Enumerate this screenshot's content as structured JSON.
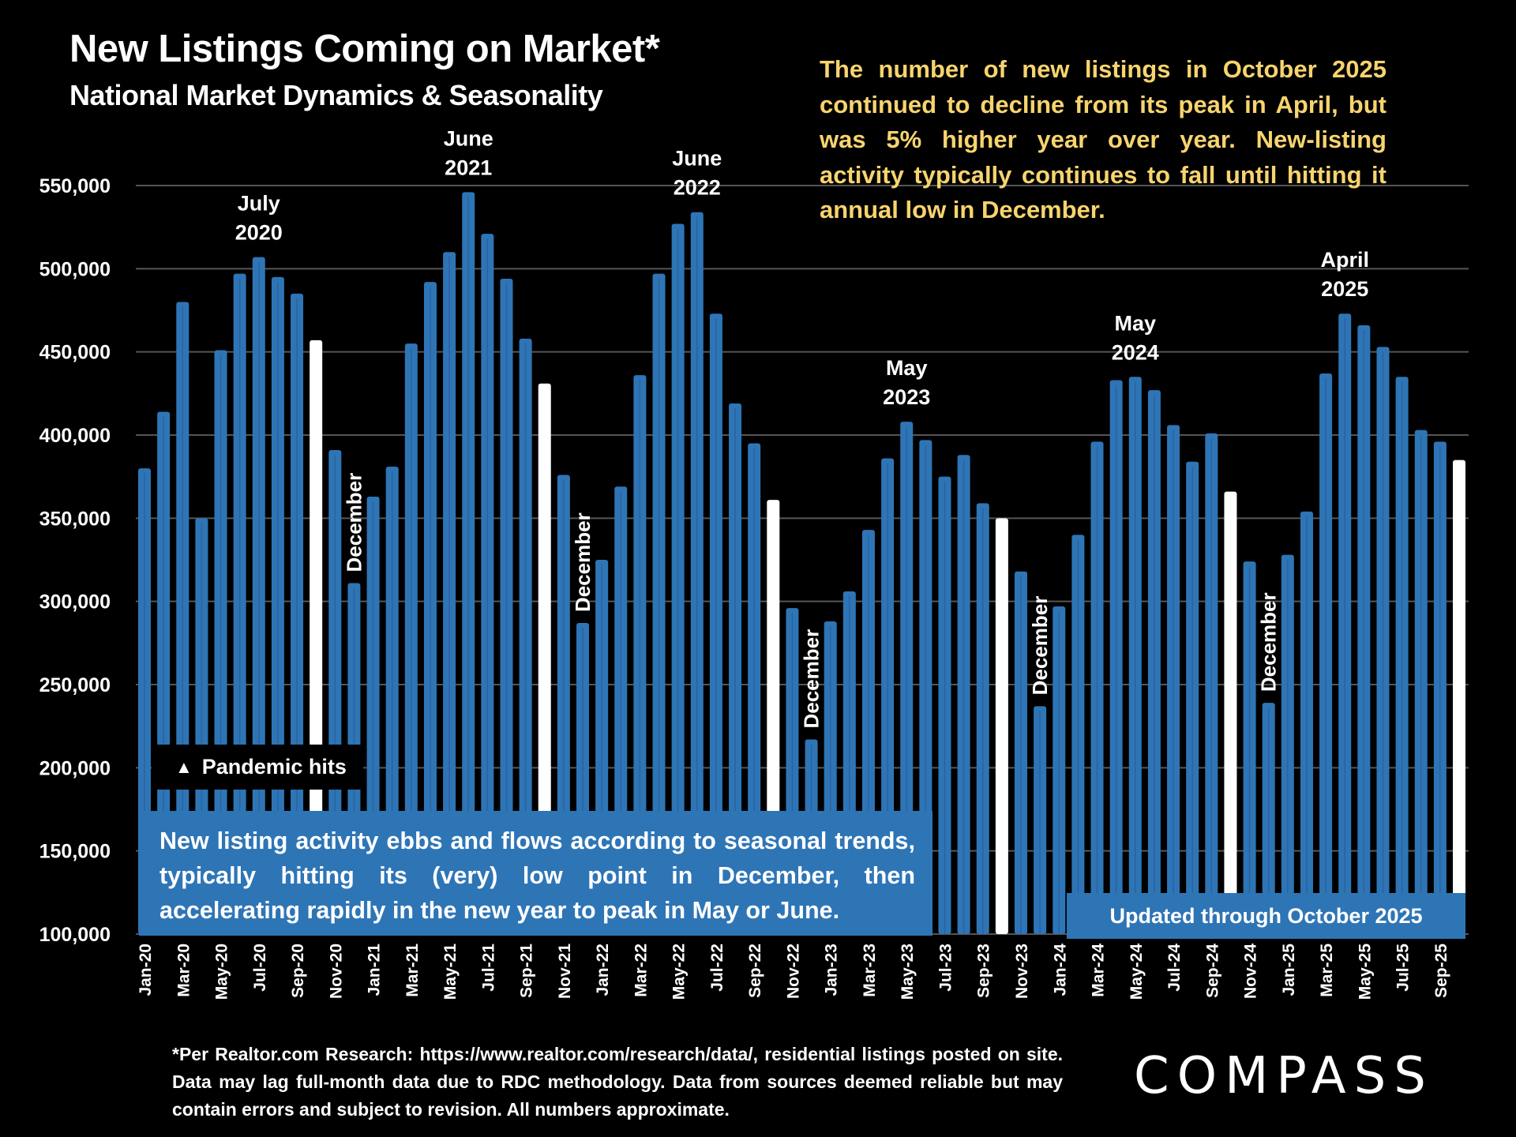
{
  "header": {
    "title": "New Listings Coming on Market*",
    "subtitle": "National Market Dynamics & Seasonality"
  },
  "commentary": "The number of new listings in October 2025 continued to decline from its peak in April, but was 5% higher year over year. New-listing activity typically continues to fall until hitting it annual low in December.",
  "annotations": {
    "pandemic": "Pandemic hits",
    "pandemic_icon": "up-triangle",
    "seasonal_note": "New listing activity ebbs and flows according to seasonal trends, typically hitting its (very) low point in December, then accelerating rapidly in the new year to peak in May or June.",
    "updated": "Updated through October 2025"
  },
  "footnote": "*Per Realtor.com Research:  https://www.realtor.com/research/data/, residential listings posted on site. Data may lag full-month data due to RDC methodology. Data from sources deemed reliable but may contain errors and subject to revision. All numbers approximate.",
  "logo": "COMPASS",
  "colors": {
    "bar": "#2E75B6",
    "bar_highlight": "#FFFFFF",
    "commentary": "#F7D46E",
    "grid": "#555555",
    "background": "#000000"
  },
  "chart_data": {
    "type": "bar",
    "title": "New Listings Coming on Market*",
    "subtitle": "National Market Dynamics & Seasonality",
    "xlabel": "",
    "ylabel": "",
    "ylim": [
      100000,
      550000
    ],
    "yticks": [
      100000,
      150000,
      200000,
      250000,
      300000,
      350000,
      400000,
      450000,
      500000,
      550000
    ],
    "ytick_labels": [
      "100,000",
      "150,000",
      "200,000",
      "250,000",
      "300,000",
      "350,000",
      "400,000",
      "450,000",
      "500,000",
      "550,000"
    ],
    "grid": true,
    "categories": [
      "Jan-20",
      "Feb-20",
      "Mar-20",
      "Apr-20",
      "May-20",
      "Jun-20",
      "Jul-20",
      "Aug-20",
      "Sep-20",
      "Oct-20",
      "Nov-20",
      "Dec-20",
      "Jan-21",
      "Feb-21",
      "Mar-21",
      "Apr-21",
      "May-21",
      "Jun-21",
      "Jul-21",
      "Aug-21",
      "Sep-21",
      "Oct-21",
      "Nov-21",
      "Dec-21",
      "Jan-22",
      "Feb-22",
      "Mar-22",
      "Apr-22",
      "May-22",
      "Jun-22",
      "Jul-22",
      "Aug-22",
      "Sep-22",
      "Oct-22",
      "Nov-22",
      "Dec-22",
      "Jan-23",
      "Feb-23",
      "Mar-23",
      "Apr-23",
      "May-23",
      "Jun-23",
      "Jul-23",
      "Aug-23",
      "Sep-23",
      "Oct-23",
      "Nov-23",
      "Dec-23",
      "Jan-24",
      "Feb-24",
      "Mar-24",
      "Apr-24",
      "May-24",
      "Jun-24",
      "Jul-24",
      "Aug-24",
      "Sep-24",
      "Oct-24",
      "Nov-24",
      "Dec-24",
      "Jan-25",
      "Feb-25",
      "Mar-25",
      "Apr-25",
      "May-25",
      "Jun-25",
      "Jul-25",
      "Aug-25",
      "Sep-25",
      "Oct-25"
    ],
    "values": [
      380000,
      414000,
      480000,
      350000,
      451000,
      497000,
      507000,
      495000,
      485000,
      457000,
      391000,
      311000,
      363000,
      381000,
      455000,
      492000,
      510000,
      546000,
      521000,
      494000,
      458000,
      431000,
      376000,
      287000,
      325000,
      369000,
      436000,
      497000,
      527000,
      534000,
      473000,
      419000,
      395000,
      361000,
      296000,
      217000,
      288000,
      306000,
      343000,
      386000,
      408000,
      397000,
      375000,
      388000,
      359000,
      350000,
      318000,
      237000,
      297000,
      340000,
      396000,
      433000,
      435000,
      427000,
      406000,
      384000,
      401000,
      366000,
      324000,
      239000,
      328000,
      354000,
      437000,
      473000,
      466000,
      453000,
      435000,
      403000,
      396000,
      385000
    ],
    "highlighted": [
      "Oct-20",
      "Oct-21",
      "Oct-22",
      "Oct-23",
      "Oct-24",
      "Oct-25"
    ],
    "xtick_labels_shown": [
      "Jan-20",
      "Mar-20",
      "May-20",
      "Jul-20",
      "Sep-20",
      "Nov-20",
      "Jan-21",
      "Mar-21",
      "May-21",
      "Jul-21",
      "Sep-21",
      "Nov-21",
      "Jan-22",
      "Mar-22",
      "May-22",
      "Jul-22",
      "Sep-22",
      "Nov-22",
      "Jan-23",
      "Mar-23",
      "May-23",
      "Jul-23",
      "Sep-23",
      "Nov-23",
      "Jan-24",
      "Mar-24",
      "May-24",
      "Jul-24",
      "Sep-24",
      "Nov-24",
      "Jan-25",
      "Mar-25",
      "May-25",
      "Jul-25",
      "Sep-25"
    ],
    "peak_labels": [
      {
        "category": "Jul-20",
        "line1": "July",
        "line2": "2020"
      },
      {
        "category": "Jun-21",
        "line1": "June",
        "line2": "2021"
      },
      {
        "category": "Jun-22",
        "line1": "June",
        "line2": "2022"
      },
      {
        "category": "May-23",
        "line1": "May",
        "line2": "2023"
      },
      {
        "category": "May-24",
        "line1": "May",
        "line2": "2024"
      },
      {
        "category": "Apr-25",
        "line1": "April",
        "line2": "2025"
      }
    ],
    "december_labels": [
      {
        "category": "Dec-20",
        "text": "December"
      },
      {
        "category": "Dec-21",
        "text": "December"
      },
      {
        "category": "Dec-22",
        "text": "December"
      },
      {
        "category": "Dec-23",
        "text": "December"
      },
      {
        "category": "Dec-24",
        "text": "December"
      }
    ]
  }
}
